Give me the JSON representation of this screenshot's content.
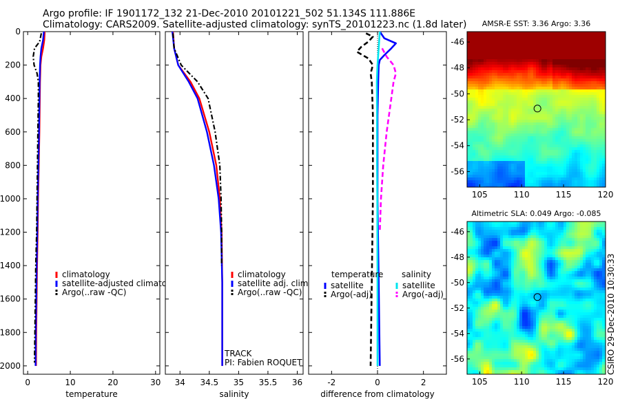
{
  "header": {
    "line1": "Argo profile: IF 1901172_132 21-Dec-2010 20101221_502 51.134S 111.886E",
    "line2": "Climatology: CARS2009. Satellite-adjusted climatology: synTS_20101223.nc (1.8d later)"
  },
  "colors": {
    "climatology": "#ff0000",
    "satellite": "#0000ff",
    "argo": "#000000",
    "salinity_sat": "#00e5ee",
    "salinity_argo": "#ff00ff"
  },
  "chart_data": [
    {
      "type": "line",
      "id": "temperature",
      "xlabel": "temperature",
      "ylabel": "",
      "xlim": [
        -1,
        31
      ],
      "ylim": [
        2050,
        0
      ],
      "xticks": [
        0,
        10,
        20,
        30
      ],
      "yticks": [
        0,
        200,
        400,
        600,
        800,
        1000,
        1200,
        1400,
        1600,
        1800,
        2000
      ],
      "legend": [
        "climatology",
        "satellite-adjusted climatology",
        "Argo(..raw -QC)"
      ],
      "series": [
        {
          "name": "climatology",
          "style": "solid",
          "depth": [
            0,
            50,
            100,
            150,
            200,
            300,
            400,
            600,
            800,
            1000,
            1200,
            1400,
            1600,
            1800,
            2000
          ],
          "values": [
            4.0,
            3.9,
            3.6,
            3.2,
            3.0,
            2.9,
            2.85,
            2.75,
            2.6,
            2.45,
            2.35,
            2.2,
            2.1,
            2.0,
            1.95
          ]
        },
        {
          "name": "satellite-adjusted climatology",
          "style": "solid",
          "depth": [
            0,
            50,
            100,
            150,
            200,
            300,
            400,
            600,
            800,
            1000,
            1200,
            1400,
            1600,
            1800,
            2000
          ],
          "values": [
            3.8,
            3.6,
            3.2,
            3.0,
            2.9,
            2.8,
            2.75,
            2.65,
            2.5,
            2.35,
            2.25,
            2.1,
            2.0,
            1.9,
            1.85
          ]
        },
        {
          "name": "Argo(..raw -QC)",
          "style": "dashdot",
          "depth": [
            10,
            60,
            100,
            150,
            200,
            250,
            300,
            400,
            600,
            800,
            1000,
            1200,
            1400,
            1600,
            1800,
            1980
          ],
          "values": [
            3.2,
            2.8,
            1.6,
            1.3,
            1.5,
            2.2,
            2.5,
            2.5,
            2.4,
            2.3,
            2.2,
            2.1,
            1.9,
            1.8,
            1.7,
            1.6
          ]
        }
      ]
    },
    {
      "type": "line",
      "id": "salinity",
      "xlabel": "salinity",
      "xlim": [
        33.75,
        36.1
      ],
      "ylim": [
        2050,
        0
      ],
      "xticks": [
        34,
        34.5,
        35,
        35.5,
        36
      ],
      "legend": [
        "climatology",
        "satellite adj. clim.",
        "Argo(..raw -QC)"
      ],
      "annotations": [
        "TRACK",
        "PI: Fabien ROQUET"
      ],
      "series": [
        {
          "name": "climatology",
          "style": "solid",
          "depth": [
            0,
            100,
            200,
            300,
            400,
            600,
            800,
            1000,
            1200,
            1500,
            1800,
            2000
          ],
          "values": [
            33.88,
            33.9,
            33.97,
            34.18,
            34.33,
            34.5,
            34.62,
            34.68,
            34.71,
            34.72,
            34.72,
            34.72
          ]
        },
        {
          "name": "satellite adj. clim.",
          "style": "solid",
          "depth": [
            0,
            100,
            200,
            300,
            400,
            600,
            800,
            1000,
            1200,
            1500,
            1800,
            2000
          ],
          "values": [
            33.87,
            33.9,
            33.97,
            34.15,
            34.3,
            34.46,
            34.58,
            34.66,
            34.7,
            34.72,
            34.72,
            34.72
          ]
        },
        {
          "name": "Argo(..raw -QC)",
          "style": "dashdot",
          "depth": [
            10,
            100,
            200,
            300,
            400,
            600,
            800,
            1000,
            1200,
            1400
          ],
          "values": [
            33.88,
            33.9,
            34.02,
            34.3,
            34.48,
            34.6,
            34.68,
            34.7,
            34.71,
            34.71
          ]
        }
      ]
    },
    {
      "type": "line",
      "id": "difference",
      "xlabel": "difference from climatology",
      "xlim": [
        -3,
        3
      ],
      "ylim": [
        2050,
        0
      ],
      "xticks": [
        -2,
        0,
        2
      ],
      "legend": {
        "temperature_title": "temperature",
        "salinity_title": "salinity",
        "items": [
          "satellite",
          "Argo(-adj)",
          "satellite",
          "Argo(-adj)"
        ]
      },
      "series": [
        {
          "name": "temperature satellite",
          "style": "solid",
          "depth": [
            0,
            40,
            70,
            100,
            140,
            170,
            200,
            300,
            500,
            800,
            1000,
            1500,
            2000
          ],
          "values": [
            0.1,
            0.3,
            0.8,
            0.6,
            0.3,
            0.1,
            0.05,
            0.03,
            0.0,
            0.0,
            0.0,
            0.05,
            0.1
          ]
        },
        {
          "name": "temperature Argo(-adj)",
          "style": "dashed",
          "depth": [
            10,
            30,
            60,
            90,
            120,
            160,
            200,
            250,
            300,
            500,
            800,
            1000,
            1500,
            2000
          ],
          "values": [
            -0.5,
            -0.2,
            -0.4,
            -0.7,
            -0.9,
            -0.4,
            -0.2,
            -0.3,
            -0.25,
            -0.2,
            -0.2,
            -0.2,
            -0.25,
            -0.3
          ]
        },
        {
          "name": "salinity satellite",
          "style": "solid",
          "depth": [
            0,
            100,
            200,
            300,
            500,
            800,
            1000,
            1500,
            2000
          ],
          "values": [
            0.1,
            0.05,
            0.0,
            -0.03,
            -0.02,
            -0.02,
            -0.01,
            0.0,
            0.0
          ]
        },
        {
          "name": "salinity Argo(-adj)",
          "style": "dashed",
          "depth": [
            100,
            150,
            200,
            250,
            300,
            400,
            600,
            800,
            1000,
            1200
          ],
          "values": [
            0.2,
            0.4,
            0.7,
            0.8,
            0.7,
            0.6,
            0.4,
            0.25,
            0.15,
            0.1
          ]
        }
      ]
    },
    {
      "type": "heatmap",
      "id": "sst",
      "title": "AMSR-E SST: 3.36 Argo: 3.36",
      "xlim": [
        103.5,
        120
      ],
      "ylim": [
        -57.2,
        -45.2
      ],
      "xticks": [
        105,
        110,
        115,
        120
      ],
      "yticks": [
        -46,
        -48,
        -50,
        -52,
        -54,
        -56
      ],
      "marker": {
        "lon": 111.886,
        "lat": -51.134
      }
    },
    {
      "type": "heatmap",
      "id": "sla",
      "title": "Altimetric SLA: 0.049 Argo: -0.085",
      "xlim": [
        103.5,
        120
      ],
      "ylim": [
        -57.2,
        -45.2
      ],
      "xticks": [
        105,
        110,
        115,
        120
      ],
      "yticks": [
        -46,
        -48,
        -50,
        -52,
        -54,
        -56
      ],
      "marker": {
        "lon": 111.886,
        "lat": -51.134
      },
      "side_label": "CSIRO 29-Dec-2010 10:30:33"
    }
  ]
}
